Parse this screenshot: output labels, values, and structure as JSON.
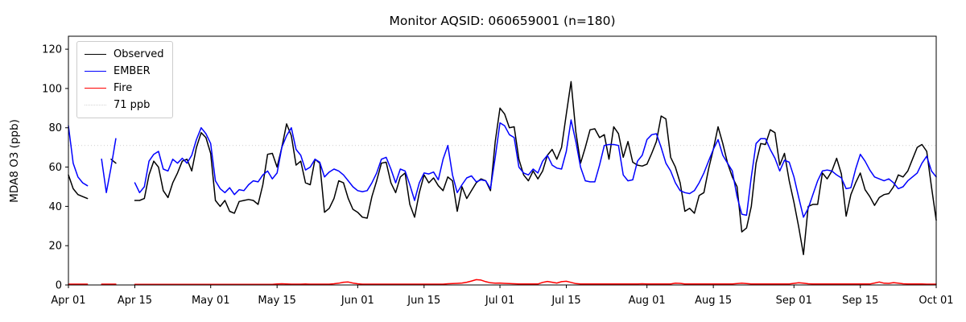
{
  "figure": {
    "title": "Monitor AQSID: 060659001 (n=180)",
    "ylabel": "MDA8 O3 (ppb)",
    "background": "#ffffff"
  },
  "legend": {
    "position": "upper left",
    "items": [
      {
        "label": "Observed",
        "color": "#000000",
        "style": "solid"
      },
      {
        "label": "EMBER",
        "color": "#0000ff",
        "style": "solid"
      },
      {
        "label": "Fire",
        "color": "#ff0000",
        "style": "solid"
      },
      {
        "label": "71 ppb",
        "color": "#d3d3d3",
        "style": "dotted"
      }
    ]
  },
  "chart_data": {
    "type": "line",
    "title": "Monitor AQSID: 060659001 (n=180)",
    "xlabel": "",
    "ylabel": "MDA8 O3 (ppb)",
    "x_unit": "days since Apr 01",
    "xlim": [
      0,
      183
    ],
    "ylim": [
      0,
      126.6
    ],
    "grid": false,
    "legend_position": "upper left",
    "x_tick_days": [
      0,
      14,
      30,
      44,
      61,
      75,
      91,
      105,
      122,
      136,
      153,
      167,
      183
    ],
    "x_tick_labels": [
      "Apr 01",
      "Apr 15",
      "May 01",
      "May 15",
      "Jun 01",
      "Jun 15",
      "Jul 01",
      "Jul 15",
      "Aug 01",
      "Aug 15",
      "Sep 01",
      "Sep 15",
      "Oct 01"
    ],
    "y_ticks": [
      0,
      20,
      40,
      60,
      80,
      100,
      120
    ],
    "threshold": {
      "value": 71,
      "label": "71 ppb",
      "color": "#d3d3d3"
    },
    "series": [
      {
        "name": "Observed",
        "color": "#000000",
        "values": [
          56,
          49,
          46,
          45,
          44,
          null,
          null,
          null,
          null,
          64,
          62,
          null,
          null,
          null,
          43,
          43,
          44,
          56,
          63,
          60,
          48,
          44.5,
          52,
          57,
          63,
          64,
          58,
          70,
          77.5,
          75,
          67,
          43,
          40,
          43,
          37.5,
          36.5,
          42.5,
          43,
          43.5,
          43,
          41,
          51,
          66.5,
          67,
          60,
          70,
          82,
          76,
          61,
          63,
          52,
          51,
          64,
          62,
          37,
          39,
          44,
          53,
          52,
          44,
          38.5,
          37,
          34.5,
          34,
          45,
          53,
          62,
          62.5,
          52,
          47,
          55,
          57,
          41,
          34.5,
          47,
          56,
          52,
          54.5,
          50.5,
          48,
          55,
          53,
          37.5,
          50,
          44,
          48,
          52,
          54,
          53,
          48,
          73,
          90,
          87,
          80,
          80.5,
          64,
          56,
          53,
          58,
          54,
          58,
          66,
          69,
          64,
          70,
          87,
          103.5,
          78,
          62,
          70,
          79,
          79.5,
          75,
          76.5,
          64,
          80.5,
          77,
          65,
          73,
          62.5,
          61,
          60.5,
          61.5,
          67,
          73,
          86,
          84.5,
          65,
          60,
          52,
          37.5,
          39,
          36.5,
          45.5,
          47,
          59,
          69,
          80.5,
          72,
          62,
          55,
          50,
          27,
          29,
          40,
          62,
          72,
          71.5,
          79,
          77.5,
          61,
          67,
          53,
          42,
          29.5,
          15.5,
          40,
          41,
          41,
          57,
          54,
          58,
          64.5,
          56.5,
          35,
          46,
          52,
          57,
          48.5,
          45,
          40.5,
          44.5,
          46,
          46.5,
          50,
          56,
          55,
          58,
          64,
          70,
          71.5,
          68,
          50,
          33
        ]
      },
      {
        "name": "EMBER",
        "color": "#0000ff",
        "values": [
          81,
          62,
          55,
          52,
          50.5,
          null,
          null,
          64,
          47,
          60,
          74.5,
          null,
          null,
          null,
          52,
          47,
          50,
          63,
          66.5,
          68,
          59,
          58,
          64,
          62,
          64.5,
          62,
          66,
          74,
          80,
          77,
          72,
          53,
          49,
          47,
          49.5,
          46,
          48.5,
          48,
          51,
          53,
          52.5,
          56,
          58,
          54,
          57,
          70,
          76,
          80,
          69,
          66,
          58.5,
          60,
          64,
          62.5,
          55,
          57.5,
          59,
          58,
          56,
          53,
          50,
          48,
          47.5,
          48,
          52,
          57,
          64,
          65,
          59,
          52,
          59,
          58,
          51,
          43,
          52,
          57,
          56.5,
          57.5,
          53.5,
          64,
          71,
          56,
          47,
          51,
          54.5,
          55.5,
          52.5,
          53.5,
          53,
          49,
          65,
          82.5,
          81,
          76.5,
          75,
          60,
          57,
          56,
          59,
          57,
          63,
          66,
          61,
          59.5,
          59,
          68,
          84,
          73,
          60,
          53,
          52.5,
          52.5,
          61,
          71,
          71.5,
          71.5,
          71,
          56,
          53,
          53.5,
          63,
          66,
          74,
          76.5,
          77,
          70,
          62,
          58,
          52,
          48,
          47,
          46.5,
          48,
          52,
          57,
          63,
          69,
          74,
          66,
          62,
          58,
          45,
          36,
          35.5,
          55,
          72,
          74.5,
          74.5,
          69,
          64.5,
          58,
          63.5,
          62.5,
          55,
          44.5,
          34.5,
          39,
          46,
          53,
          58,
          58.5,
          58,
          56,
          54.5,
          49,
          49.5,
          59,
          66.5,
          63,
          58.5,
          55,
          54,
          53,
          54,
          52,
          49,
          50,
          53,
          55,
          57,
          62,
          65.5,
          58,
          55
        ]
      },
      {
        "name": "Fire",
        "color": "#ff0000",
        "values": [
          0.4,
          0.4,
          0.4,
          0.4,
          0.4,
          null,
          null,
          0.4,
          0.4,
          0.4,
          0.4,
          null,
          null,
          null,
          0.3,
          0.3,
          0.3,
          0.3,
          0.3,
          0.3,
          0.3,
          0.3,
          0.3,
          0.3,
          0.3,
          0.3,
          0.3,
          0.3,
          0.3,
          0.3,
          0.3,
          0.3,
          0.3,
          0.3,
          0.3,
          0.3,
          0.3,
          0.3,
          0.3,
          0.3,
          0.3,
          0.3,
          0.3,
          0.3,
          0.5,
          0.6,
          0.5,
          0.4,
          0.4,
          0.4,
          0.5,
          0.4,
          0.4,
          0.4,
          0.4,
          0.4,
          0.6,
          0.9,
          1.4,
          1.5,
          1.0,
          0.6,
          0.4,
          0.4,
          0.4,
          0.4,
          0.4,
          0.4,
          0.4,
          0.4,
          0.4,
          0.4,
          0.4,
          0.4,
          0.4,
          0.4,
          0.4,
          0.4,
          0.4,
          0.4,
          0.6,
          0.7,
          0.8,
          1.0,
          1.4,
          2.0,
          2.7,
          2.5,
          1.7,
          1.1,
          0.9,
          1.0,
          0.8,
          0.7,
          0.6,
          0.5,
          0.5,
          0.5,
          0.5,
          0.5,
          1.3,
          1.8,
          1.4,
          1.0,
          1.7,
          1.9,
          1.3,
          0.7,
          0.5,
          0.5,
          0.5,
          0.5,
          0.5,
          0.5,
          0.5,
          0.5,
          0.5,
          0.5,
          0.5,
          0.5,
          0.5,
          0.6,
          0.5,
          0.5,
          0.5,
          0.5,
          0.5,
          0.5,
          0.9,
          0.8,
          0.5,
          0.5,
          0.5,
          0.5,
          0.5,
          0.5,
          0.5,
          0.5,
          0.5,
          0.5,
          0.5,
          0.7,
          0.9,
          0.7,
          0.5,
          0.5,
          0.5,
          0.5,
          0.5,
          0.5,
          0.5,
          0.5,
          0.5,
          0.8,
          1.1,
          0.9,
          0.6,
          0.5,
          0.5,
          0.5,
          0.5,
          0.5,
          0.5,
          0.5,
          0.5,
          0.5,
          0.5,
          0.5,
          0.5,
          0.5,
          1.0,
          1.5,
          0.9,
          0.8,
          1.2,
          0.9,
          0.6,
          0.5,
          0.5,
          0.5,
          0.5,
          0.4,
          0.4,
          0.4
        ]
      }
    ]
  }
}
